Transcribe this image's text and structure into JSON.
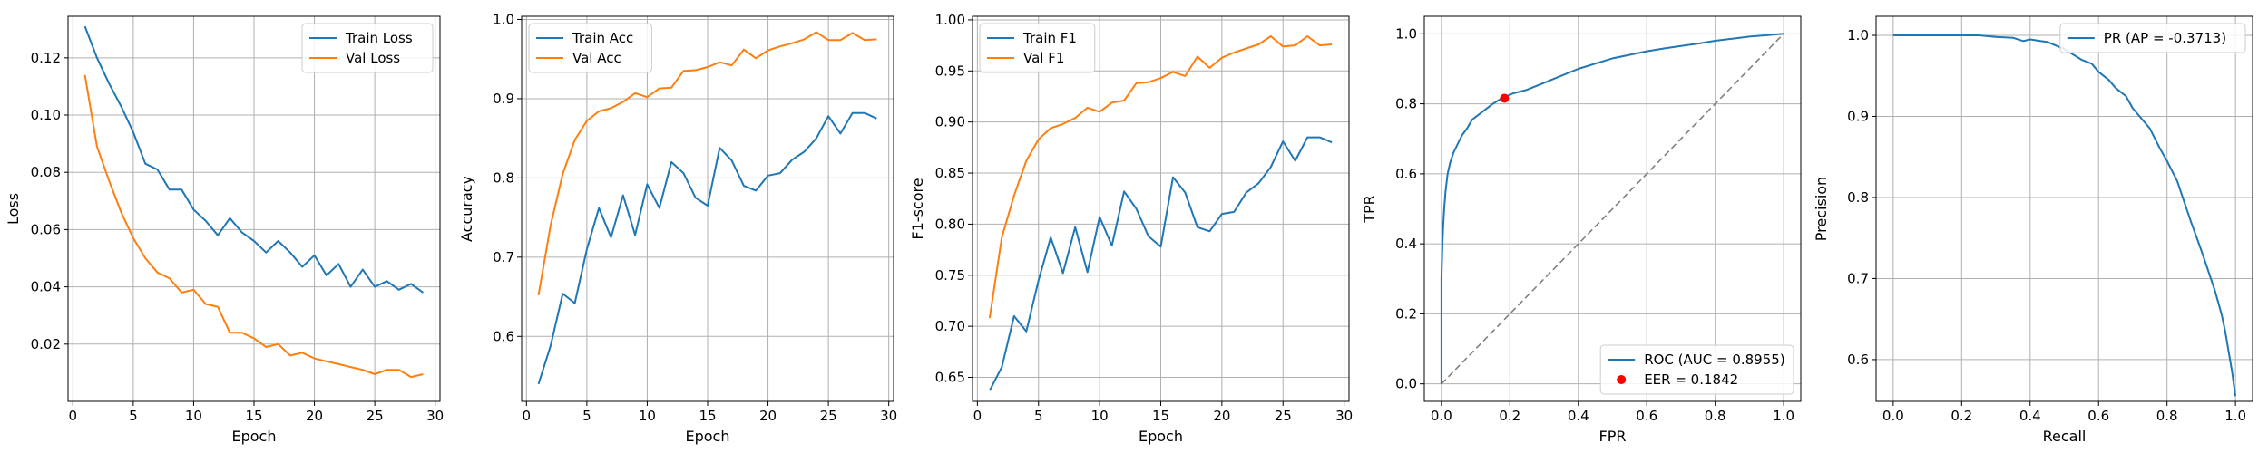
{
  "colors": {
    "blue": "#1f77b4",
    "orange": "#ff7f0e",
    "red": "#ff0000",
    "diag": "#808080",
    "grid": "#b0b0b0"
  },
  "chart_data": [
    {
      "type": "line",
      "xlabel": "Epoch",
      "ylabel": "Loss",
      "xlim": [
        -0.4,
        30.4
      ],
      "ylim": [
        0.0,
        0.1345
      ],
      "xticks": [
        0,
        5,
        10,
        15,
        20,
        25,
        30
      ],
      "yticks": [
        0.02,
        0.04,
        0.06,
        0.08,
        0.1,
        0.12
      ],
      "grid": true,
      "legend_position": "top-right",
      "x": [
        1,
        2,
        3,
        4,
        5,
        6,
        7,
        8,
        9,
        10,
        11,
        12,
        13,
        14,
        15,
        16,
        17,
        18,
        19,
        20,
        21,
        22,
        23,
        24,
        25,
        26,
        27,
        28,
        29
      ],
      "series": [
        {
          "name": "Train Loss",
          "color": "blue",
          "values": [
            0.131,
            0.12,
            0.111,
            0.103,
            0.094,
            0.083,
            0.081,
            0.074,
            0.074,
            0.067,
            0.063,
            0.058,
            0.064,
            0.059,
            0.056,
            0.052,
            0.056,
            0.052,
            0.047,
            0.051,
            0.044,
            0.048,
            0.04,
            0.046,
            0.04,
            0.042,
            0.039,
            0.041,
            0.038
          ]
        },
        {
          "name": "Val Loss",
          "color": "orange",
          "values": [
            0.114,
            0.089,
            0.077,
            0.066,
            0.057,
            0.05,
            0.045,
            0.043,
            0.038,
            0.039,
            0.034,
            0.033,
            0.024,
            0.024,
            0.022,
            0.019,
            0.02,
            0.016,
            0.017,
            0.015,
            0.014,
            0.013,
            0.012,
            0.011,
            0.0095,
            0.011,
            0.011,
            0.0085,
            0.0095
          ]
        }
      ]
    },
    {
      "type": "line",
      "xlabel": "Epoch",
      "ylabel": "Accuracy",
      "xlim": [
        -0.4,
        30.4
      ],
      "ylim": [
        0.518,
        1.004
      ],
      "xticks": [
        0,
        5,
        10,
        15,
        20,
        25,
        30
      ],
      "yticks": [
        0.6,
        0.7,
        0.8,
        0.9,
        1.0
      ],
      "grid": true,
      "legend_position": "top-left",
      "x": [
        1,
        2,
        3,
        4,
        5,
        6,
        7,
        8,
        9,
        10,
        11,
        12,
        13,
        14,
        15,
        16,
        17,
        18,
        19,
        20,
        21,
        22,
        23,
        24,
        25,
        26,
        27,
        28,
        29
      ],
      "series": [
        {
          "name": "Train Acc",
          "color": "blue",
          "values": [
            0.54,
            0.588,
            0.654,
            0.642,
            0.71,
            0.762,
            0.725,
            0.778,
            0.728,
            0.792,
            0.762,
            0.82,
            0.806,
            0.775,
            0.765,
            0.838,
            0.822,
            0.79,
            0.784,
            0.803,
            0.806,
            0.823,
            0.833,
            0.85,
            0.878,
            0.856,
            0.882,
            0.882,
            0.875
          ]
        },
        {
          "name": "Val Acc",
          "color": "orange",
          "values": [
            0.652,
            0.74,
            0.805,
            0.848,
            0.872,
            0.884,
            0.888,
            0.896,
            0.907,
            0.902,
            0.913,
            0.914,
            0.935,
            0.936,
            0.94,
            0.946,
            0.942,
            0.962,
            0.951,
            0.961,
            0.966,
            0.97,
            0.975,
            0.984,
            0.974,
            0.974,
            0.983,
            0.974,
            0.975
          ]
        }
      ]
    },
    {
      "type": "line",
      "xlabel": "Epoch",
      "ylabel": "F1-score",
      "xlim": [
        -0.4,
        30.4
      ],
      "ylim": [
        0.6265,
        1.0035
      ],
      "xticks": [
        0,
        5,
        10,
        15,
        20,
        25,
        30
      ],
      "yticks": [
        0.65,
        0.7,
        0.75,
        0.8,
        0.85,
        0.9,
        0.95,
        1.0
      ],
      "grid": true,
      "legend_position": "top-left",
      "x": [
        1,
        2,
        3,
        4,
        5,
        6,
        7,
        8,
        9,
        10,
        11,
        12,
        13,
        14,
        15,
        16,
        17,
        18,
        19,
        20,
        21,
        22,
        23,
        24,
        25,
        26,
        27,
        28,
        29
      ],
      "series": [
        {
          "name": "Train F1",
          "color": "blue",
          "values": [
            0.637,
            0.66,
            0.71,
            0.695,
            0.745,
            0.787,
            0.752,
            0.797,
            0.753,
            0.807,
            0.779,
            0.832,
            0.815,
            0.788,
            0.778,
            0.846,
            0.831,
            0.797,
            0.793,
            0.81,
            0.812,
            0.831,
            0.84,
            0.856,
            0.881,
            0.862,
            0.885,
            0.885,
            0.88
          ]
        },
        {
          "name": "Val F1",
          "color": "orange",
          "values": [
            0.708,
            0.787,
            0.828,
            0.862,
            0.883,
            0.894,
            0.898,
            0.904,
            0.914,
            0.91,
            0.919,
            0.921,
            0.938,
            0.939,
            0.943,
            0.949,
            0.945,
            0.964,
            0.953,
            0.963,
            0.968,
            0.972,
            0.976,
            0.984,
            0.974,
            0.975,
            0.984,
            0.975,
            0.976
          ]
        }
      ]
    },
    {
      "type": "line",
      "xlabel": "FPR",
      "ylabel": "TPR",
      "xlim": [
        -0.05,
        1.05
      ],
      "ylim": [
        -0.05,
        1.05
      ],
      "xticks": [
        0.0,
        0.2,
        0.4,
        0.6,
        0.8,
        1.0
      ],
      "yticks": [
        0.0,
        0.2,
        0.4,
        0.6,
        0.8,
        1.0
      ],
      "grid": true,
      "legend_position": "bottom-right",
      "series": [
        {
          "name": "ROC (AUC = 0.8955)",
          "color": "blue",
          "x": [
            0.0,
            0.0,
            0.003,
            0.005,
            0.008,
            0.012,
            0.018,
            0.025,
            0.035,
            0.045,
            0.06,
            0.075,
            0.09,
            0.11,
            0.13,
            0.15,
            0.18,
            0.21,
            0.25,
            0.3,
            0.35,
            0.4,
            0.45,
            0.5,
            0.55,
            0.6,
            0.65,
            0.7,
            0.75,
            0.8,
            0.85,
            0.9,
            0.95,
            1.0
          ],
          "y": [
            0.0,
            0.3,
            0.4,
            0.45,
            0.5,
            0.55,
            0.6,
            0.63,
            0.66,
            0.68,
            0.71,
            0.73,
            0.755,
            0.77,
            0.785,
            0.8,
            0.818,
            0.83,
            0.84,
            0.86,
            0.88,
            0.9,
            0.915,
            0.93,
            0.94,
            0.95,
            0.958,
            0.965,
            0.972,
            0.98,
            0.986,
            0.992,
            0.996,
            1.0
          ]
        },
        {
          "name": "",
          "color": "diag",
          "style": "dashed",
          "x": [
            0.0,
            1.0
          ],
          "y": [
            0.0,
            1.0
          ]
        }
      ],
      "points": [
        {
          "name": "EER = 0.1842",
          "color": "red",
          "x": 0.1842,
          "y": 0.8158
        }
      ]
    },
    {
      "type": "line",
      "xlabel": "Recall",
      "ylabel": "Precision",
      "xlim": [
        -0.05,
        1.05
      ],
      "ylim": [
        0.5485,
        1.0235
      ],
      "xticks": [
        0.0,
        0.2,
        0.4,
        0.6,
        0.8,
        1.0
      ],
      "yticks": [
        0.6,
        0.7,
        0.8,
        0.9,
        1.0
      ],
      "grid": true,
      "legend_position": "top-right",
      "series": [
        {
          "name": "PR (AP = -0.3713)",
          "color": "blue",
          "x": [
            0.0,
            0.1,
            0.2,
            0.25,
            0.3,
            0.35,
            0.38,
            0.4,
            0.43,
            0.45,
            0.5,
            0.55,
            0.58,
            0.6,
            0.63,
            0.65,
            0.68,
            0.7,
            0.72,
            0.75,
            0.78,
            0.8,
            0.83,
            0.85,
            0.87,
            0.9,
            0.92,
            0.94,
            0.95,
            0.96,
            0.97,
            0.98,
            0.99,
            1.0
          ],
          "y": [
            1.0,
            1.0,
            1.0,
            1.0,
            0.998,
            0.997,
            0.993,
            0.995,
            0.993,
            0.992,
            0.983,
            0.97,
            0.965,
            0.955,
            0.945,
            0.935,
            0.925,
            0.91,
            0.9,
            0.885,
            0.86,
            0.845,
            0.82,
            0.795,
            0.77,
            0.735,
            0.71,
            0.685,
            0.67,
            0.655,
            0.635,
            0.61,
            0.585,
            0.555
          ]
        }
      ]
    }
  ]
}
